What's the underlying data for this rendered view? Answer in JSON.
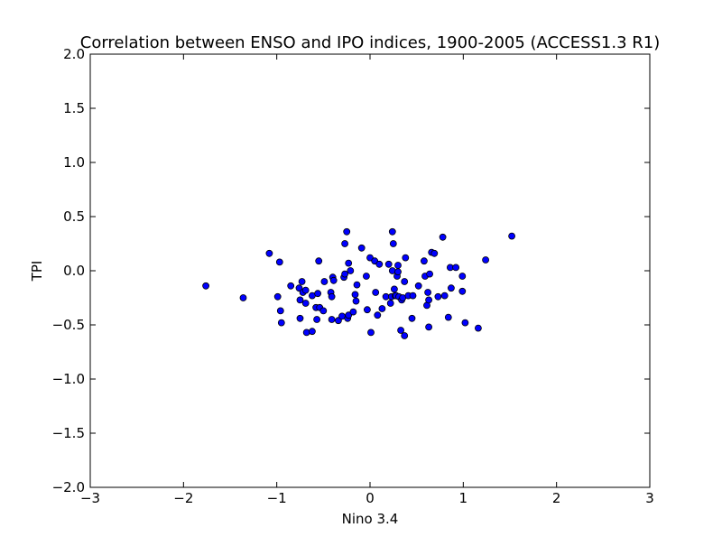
{
  "chart_data": {
    "type": "scatter",
    "title": "Correlation between ENSO and IPO indices, 1900-2005 (ACCESS1.3 R1)",
    "xlabel": "Nino 3.4",
    "ylabel": "TPI",
    "xlim": [
      -3,
      3
    ],
    "ylim": [
      -2.0,
      2.0
    ],
    "x_ticks": [
      -3,
      -2,
      -1,
      0,
      1,
      2,
      3
    ],
    "x_tick_labels": [
      "−3",
      "−2",
      "−1",
      "0",
      "1",
      "2",
      "3"
    ],
    "y_ticks": [
      -2.0,
      -1.5,
      -1.0,
      -0.5,
      0.0,
      0.5,
      1.0,
      1.5,
      2.0
    ],
    "y_tick_labels": [
      "−2.0",
      "−1.5",
      "−1.0",
      "−0.5",
      "0.0",
      "0.5",
      "1.0",
      "1.5",
      "2.0"
    ],
    "grid": false,
    "marker_color": "#0000ff",
    "marker_edge_color": "#000000",
    "points": [
      [
        -1.76,
        -0.14
      ],
      [
        -1.36,
        -0.25
      ],
      [
        -1.08,
        0.16
      ],
      [
        -0.97,
        0.08
      ],
      [
        -0.99,
        -0.24
      ],
      [
        -0.96,
        -0.37
      ],
      [
        -0.95,
        -0.48
      ],
      [
        -0.85,
        -0.14
      ],
      [
        -0.76,
        -0.16
      ],
      [
        -0.73,
        -0.1
      ],
      [
        -0.75,
        -0.27
      ],
      [
        -0.72,
        -0.2
      ],
      [
        -0.69,
        -0.18
      ],
      [
        -0.69,
        -0.3
      ],
      [
        -0.75,
        -0.44
      ],
      [
        -0.68,
        -0.57
      ],
      [
        -0.62,
        -0.56
      ],
      [
        -0.62,
        -0.23
      ],
      [
        -0.56,
        -0.21
      ],
      [
        -0.58,
        -0.34
      ],
      [
        -0.54,
        -0.34
      ],
      [
        -0.57,
        -0.45
      ],
      [
        -0.55,
        0.09
      ],
      [
        -0.5,
        -0.37
      ],
      [
        -0.49,
        -0.1
      ],
      [
        -0.42,
        -0.2
      ],
      [
        -0.41,
        -0.24
      ],
      [
        -0.41,
        -0.45
      ],
      [
        -0.4,
        -0.06
      ],
      [
        -0.39,
        -0.09
      ],
      [
        -0.34,
        -0.46
      ],
      [
        -0.3,
        -0.42
      ],
      [
        -0.28,
        -0.06
      ],
      [
        -0.27,
        -0.03
      ],
      [
        -0.27,
        0.25
      ],
      [
        -0.25,
        0.36
      ],
      [
        -0.24,
        -0.44
      ],
      [
        -0.23,
        -0.41
      ],
      [
        -0.23,
        0.07
      ],
      [
        -0.21,
        0.0
      ],
      [
        -0.18,
        -0.38
      ],
      [
        -0.16,
        -0.22
      ],
      [
        -0.14,
        -0.13
      ],
      [
        -0.15,
        -0.28
      ],
      [
        -0.09,
        0.21
      ],
      [
        -0.04,
        -0.05
      ],
      [
        -0.03,
        -0.36
      ],
      [
        0.0,
        0.12
      ],
      [
        0.01,
        -0.57
      ],
      [
        0.05,
        0.09
      ],
      [
        0.06,
        -0.2
      ],
      [
        0.08,
        -0.41
      ],
      [
        0.1,
        0.06
      ],
      [
        0.13,
        -0.35
      ],
      [
        0.17,
        -0.24
      ],
      [
        0.2,
        0.06
      ],
      [
        0.22,
        -0.3
      ],
      [
        0.23,
        -0.24
      ],
      [
        0.24,
        0.0
      ],
      [
        0.24,
        0.36
      ],
      [
        0.25,
        0.25
      ],
      [
        0.26,
        -0.17
      ],
      [
        0.27,
        -0.23
      ],
      [
        0.28,
        -0.23
      ],
      [
        0.29,
        -0.05
      ],
      [
        0.3,
        -0.01
      ],
      [
        0.3,
        0.05
      ],
      [
        0.31,
        -0.24
      ],
      [
        0.33,
        -0.55
      ],
      [
        0.34,
        -0.27
      ],
      [
        0.35,
        -0.25
      ],
      [
        0.37,
        -0.1
      ],
      [
        0.37,
        -0.6
      ],
      [
        0.38,
        0.12
      ],
      [
        0.41,
        -0.23
      ],
      [
        0.45,
        -0.44
      ],
      [
        0.46,
        -0.23
      ],
      [
        0.52,
        -0.14
      ],
      [
        0.58,
        0.09
      ],
      [
        0.59,
        -0.05
      ],
      [
        0.61,
        -0.32
      ],
      [
        0.62,
        -0.2
      ],
      [
        0.63,
        -0.27
      ],
      [
        0.63,
        -0.52
      ],
      [
        0.64,
        -0.03
      ],
      [
        0.66,
        0.17
      ],
      [
        0.69,
        0.16
      ],
      [
        0.73,
        -0.24
      ],
      [
        0.78,
        0.31
      ],
      [
        0.8,
        -0.23
      ],
      [
        0.84,
        -0.43
      ],
      [
        0.86,
        0.03
      ],
      [
        0.87,
        -0.16
      ],
      [
        0.92,
        0.03
      ],
      [
        0.99,
        -0.05
      ],
      [
        0.99,
        -0.19
      ],
      [
        1.02,
        -0.48
      ],
      [
        1.16,
        -0.53
      ],
      [
        1.24,
        0.1
      ],
      [
        1.52,
        0.32
      ]
    ]
  }
}
